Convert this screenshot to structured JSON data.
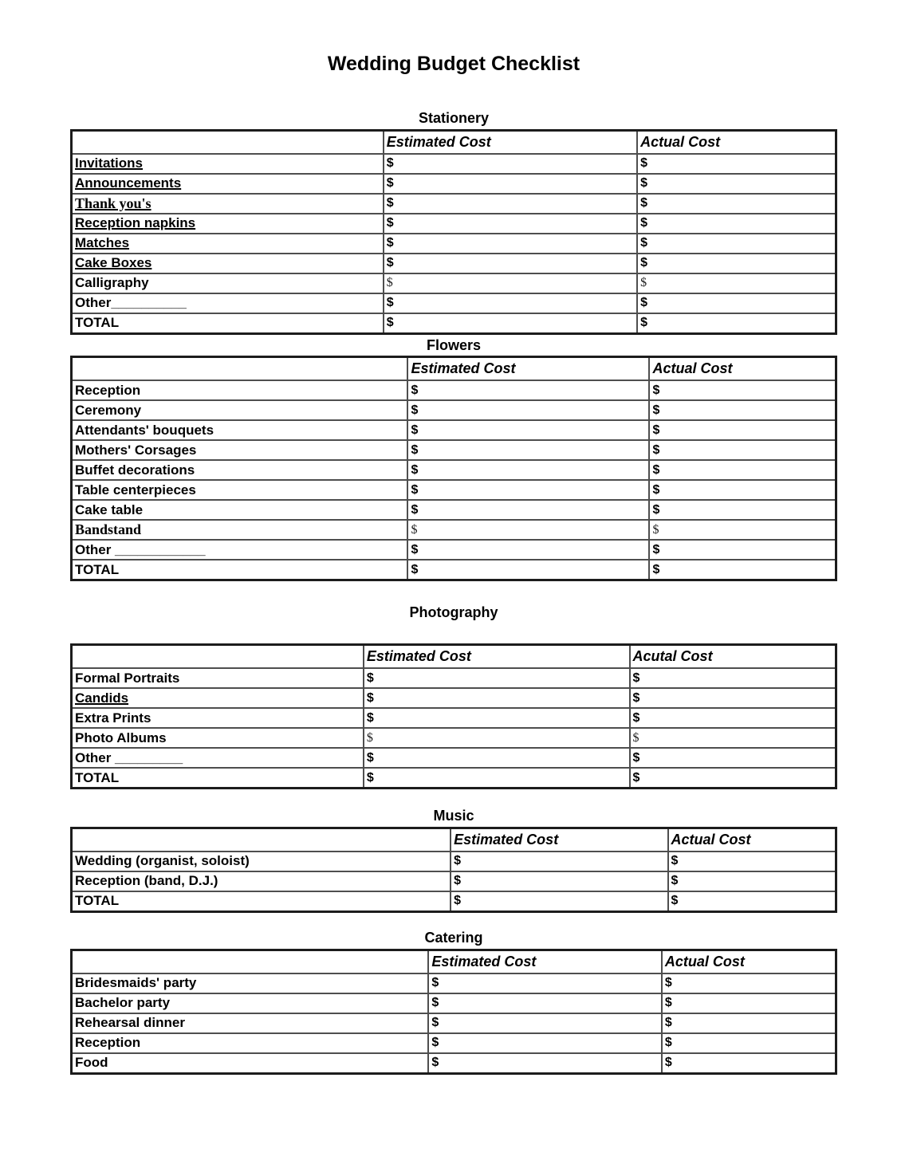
{
  "page": {
    "title": "Wedding Budget Checklist"
  },
  "sections": [
    {
      "heading": "Stationery",
      "headers": {
        "first": "",
        "estimated": "Estimated Cost",
        "actual": "Actual Cost"
      },
      "rows": [
        {
          "label": "Invitations",
          "underline": true,
          "est": "$",
          "act": "$"
        },
        {
          "label": "Announcements",
          "underline": true,
          "est": "$",
          "act": "$"
        },
        {
          "label": "Thank you's",
          "underline": true,
          "serif": true,
          "est": "$",
          "act": "$"
        },
        {
          "label": "Reception napkins",
          "underline": true,
          "est": "$",
          "act": "$"
        },
        {
          "label": "Matches",
          "underline": true,
          "est": "$",
          "act": "$"
        },
        {
          "label": "Cake Boxes",
          "underline": true,
          "est": "$",
          "act": "$"
        },
        {
          "label": "Calligraphy",
          "serif_dollar": true,
          "est": "$",
          "act": "$"
        },
        {
          "label": "Other__________",
          "est": "$",
          "act": "$"
        },
        {
          "label": "TOTAL",
          "est": "$",
          "act": "$"
        }
      ]
    },
    {
      "heading": "Flowers",
      "headers": {
        "first": "",
        "estimated": "Estimated Cost",
        "actual": "Actual Cost"
      },
      "rows": [
        {
          "label": "Reception",
          "est": "$",
          "act": "$"
        },
        {
          "label": "Ceremony",
          "est": "$",
          "act": "$"
        },
        {
          "label": "Attendants' bouquets",
          "est": "$",
          "act": "$"
        },
        {
          "label": "Mothers' Corsages",
          "est": "$",
          "act": "$"
        },
        {
          "label": "Buffet decorations",
          "est": "$",
          "act": "$"
        },
        {
          "label": "Table centerpieces",
          "est": "$",
          "act": "$"
        },
        {
          "label": "Cake table",
          "est": "$",
          "act": "$"
        },
        {
          "label": "Bandstand",
          "serif": true,
          "serif_dollar": true,
          "est": "$",
          "act": "$"
        },
        {
          "label": "Other ____________",
          "est": "$",
          "act": "$"
        },
        {
          "label": "TOTAL",
          "est": "$",
          "act": "$"
        }
      ]
    },
    {
      "heading": "Photography",
      "headers": {
        "first": "",
        "estimated": "Estimated Cost",
        "actual": "Acutal Cost"
      },
      "rows": [
        {
          "label": "Formal Portraits",
          "est": "$",
          "act": "$"
        },
        {
          "label": "Candids",
          "underline": true,
          "est": "$",
          "act": "$"
        },
        {
          "label": "Extra Prints",
          "est": "$",
          "act": "$"
        },
        {
          "label": "Photo Albums",
          "serif_dollar": true,
          "est": "$",
          "act": "$"
        },
        {
          "label": "Other _________",
          "est": "$",
          "act": "$"
        },
        {
          "label": "TOTAL",
          "est": "$",
          "act": "$"
        }
      ]
    },
    {
      "heading": "Music",
      "headers": {
        "first": "",
        "estimated": "Estimated Cost",
        "actual": "Actual Cost"
      },
      "rows": [
        {
          "label": "Wedding (organist, soloist)",
          "est": "$",
          "act": "$"
        },
        {
          "label": "Reception (band, D.J.)",
          "est": "$",
          "act": "$"
        },
        {
          "label": "TOTAL",
          "est": "$",
          "act": "$"
        }
      ]
    },
    {
      "heading": "Catering",
      "headers": {
        "first": "",
        "estimated": "Estimated Cost",
        "actual": "Actual Cost"
      },
      "rows": [
        {
          "label": "Bridesmaids' party",
          "est": "$",
          "act": "$"
        },
        {
          "label": "Bachelor party",
          "est": "$",
          "act": "$"
        },
        {
          "label": "Rehearsal dinner",
          "est": "$",
          "act": "$"
        },
        {
          "label": "Reception",
          "est": "$",
          "act": "$"
        },
        {
          "label": "Food",
          "est": "$",
          "act": "$"
        }
      ]
    }
  ]
}
